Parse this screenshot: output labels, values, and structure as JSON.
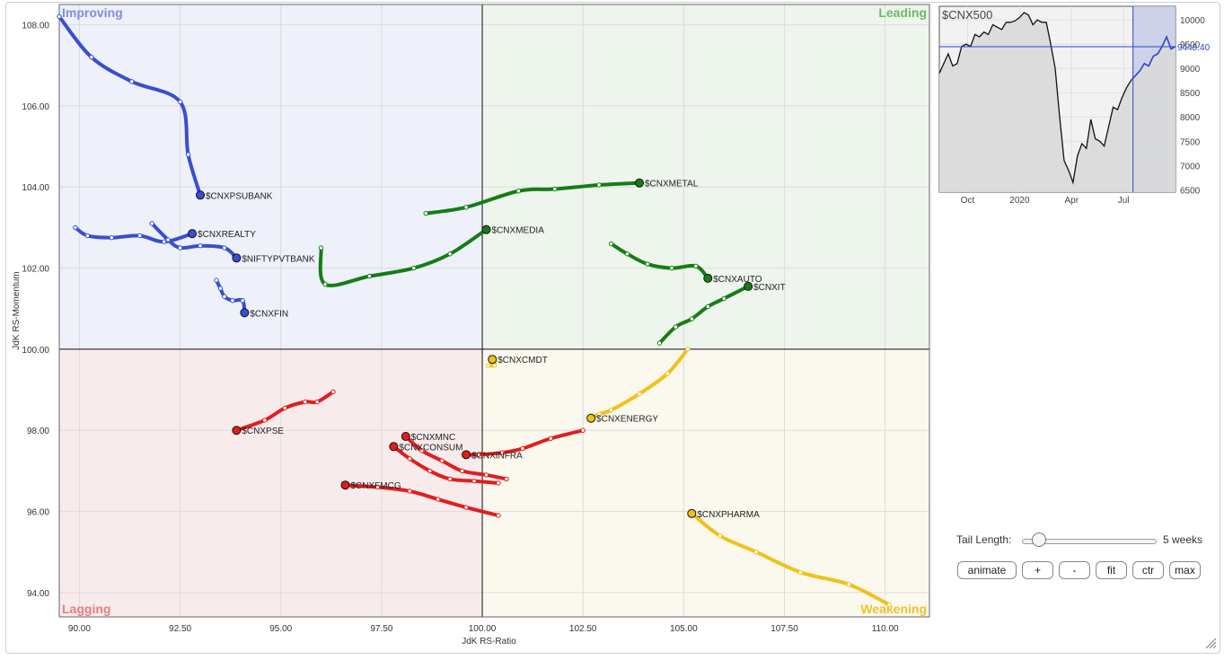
{
  "chart_data": [
    {
      "type": "scatter",
      "title": "",
      "xlabel": "JdK RS-Ratio",
      "ylabel": "JdK RS-Momentum",
      "xlim": [
        89.5,
        111.1
      ],
      "ylim": [
        93.4,
        108.5
      ],
      "x_ticks": [
        90,
        92.5,
        95,
        97.5,
        100,
        102.5,
        105,
        107.5,
        110
      ],
      "x_tick_labels": [
        "90.00",
        "92.50",
        "95.00",
        "97.50",
        "100.00",
        "102.50",
        "105.00",
        "107.50",
        "110.00"
      ],
      "y_ticks": [
        94,
        96,
        98,
        100,
        102,
        104,
        106,
        108
      ],
      "y_tick_labels": [
        "94.00",
        "96.00",
        "98.00",
        "100.00",
        "102.00",
        "104.00",
        "106.00",
        "108.00"
      ],
      "center": [
        100,
        100
      ],
      "grid": true,
      "quadrants": [
        {
          "name": "Improving",
          "position": "top-left",
          "fill": "#eef0fa",
          "label_color": "#7f8fd6"
        },
        {
          "name": "Leading",
          "position": "top-right",
          "fill": "#edf5ec",
          "label_color": "#6cb96a"
        },
        {
          "name": "Lagging",
          "position": "bottom-left",
          "fill": "#f8ebeb",
          "label_color": "#e68080"
        },
        {
          "name": "Weakening",
          "position": "bottom-right",
          "fill": "#fbf8ee",
          "label_color": "#efc32a"
        }
      ],
      "series": [
        {
          "name": "$CNXPSUBANK",
          "color": "#3b4ecf",
          "tail": [
            [
              89.5,
              108.2
            ],
            [
              90.3,
              107.2
            ],
            [
              91.3,
              106.6
            ],
            [
              92.5,
              106.1
            ],
            [
              92.7,
              104.8
            ],
            [
              93.0,
              103.8
            ]
          ]
        },
        {
          "name": "$CNXREALTY",
          "color": "#3b4ecf",
          "tail": [
            [
              89.9,
              103.0
            ],
            [
              90.2,
              102.8
            ],
            [
              90.8,
              102.75
            ],
            [
              91.5,
              102.8
            ],
            [
              92.1,
              102.65
            ],
            [
              92.8,
              102.85
            ]
          ]
        },
        {
          "name": "$NIFTYPVTBANK",
          "color": "#3b4ecf",
          "tail": [
            [
              91.8,
              103.1
            ],
            [
              92.2,
              102.7
            ],
            [
              92.5,
              102.5
            ],
            [
              93.0,
              102.55
            ],
            [
              93.6,
              102.5
            ],
            [
              93.9,
              102.25
            ]
          ]
        },
        {
          "name": "$CNXFIN",
          "color": "#3b4ecf",
          "tail": [
            [
              93.4,
              101.7
            ],
            [
              93.5,
              101.5
            ],
            [
              93.6,
              101.3
            ],
            [
              93.8,
              101.2
            ],
            [
              94.05,
              101.2
            ],
            [
              94.1,
              100.9
            ]
          ]
        },
        {
          "name": "$CNXMETAL",
          "color": "#157d15",
          "tail": [
            [
              98.6,
              103.35
            ],
            [
              99.6,
              103.5
            ],
            [
              100.9,
              103.9
            ],
            [
              101.8,
              103.95
            ],
            [
              102.9,
              104.05
            ],
            [
              103.9,
              104.1
            ]
          ]
        },
        {
          "name": "$CNXMEDIA",
          "color": "#157d15",
          "tail": [
            [
              96.0,
              102.5
            ],
            [
              96.1,
              101.6
            ],
            [
              97.2,
              101.8
            ],
            [
              98.3,
              102.0
            ],
            [
              99.2,
              102.35
            ],
            [
              100.1,
              102.95
            ]
          ]
        },
        {
          "name": "$CNXAUTO",
          "color": "#157d15",
          "tail": [
            [
              103.2,
              102.6
            ],
            [
              103.6,
              102.35
            ],
            [
              104.1,
              102.1
            ],
            [
              104.7,
              102.0
            ],
            [
              105.3,
              102.05
            ],
            [
              105.6,
              101.75
            ]
          ]
        },
        {
          "name": "$CNXIT",
          "color": "#157d15",
          "tail": [
            [
              104.4,
              100.15
            ],
            [
              104.8,
              100.55
            ],
            [
              105.2,
              100.75
            ],
            [
              105.6,
              101.05
            ],
            [
              106.0,
              101.25
            ],
            [
              106.6,
              101.55
            ]
          ]
        },
        {
          "name": "$CNXCMDT",
          "color": "#eec21a",
          "tail": [
            [
              100.15,
              99.6
            ],
            [
              100.3,
              99.6
            ],
            [
              100.3,
              99.7
            ],
            [
              100.25,
              99.75
            ],
            [
              100.2,
              99.75
            ],
            [
              100.25,
              99.75
            ]
          ]
        },
        {
          "name": "$CNXENERGY",
          "color": "#eec21a",
          "tail": [
            [
              105.1,
              100.0
            ],
            [
              104.6,
              99.4
            ],
            [
              103.9,
              98.9
            ],
            [
              103.2,
              98.5
            ],
            [
              102.9,
              98.4
            ],
            [
              102.7,
              98.3
            ]
          ]
        },
        {
          "name": "$CNXPHARMA",
          "color": "#eec21a",
          "tail": [
            [
              110.1,
              93.7
            ],
            [
              109.1,
              94.2
            ],
            [
              107.9,
              94.5
            ],
            [
              106.8,
              95.0
            ],
            [
              105.9,
              95.4
            ],
            [
              105.2,
              95.95
            ]
          ]
        },
        {
          "name": "$CNXPSE",
          "color": "#e21d1d",
          "tail": [
            [
              96.3,
              98.95
            ],
            [
              95.9,
              98.7
            ],
            [
              95.6,
              98.7
            ],
            [
              95.1,
              98.55
            ],
            [
              94.6,
              98.25
            ],
            [
              93.9,
              98.0
            ]
          ]
        },
        {
          "name": "$CNXMNC",
          "color": "#e21d1d",
          "tail": [
            [
              100.6,
              96.8
            ],
            [
              100.1,
              96.9
            ],
            [
              99.5,
              97.0
            ],
            [
              99.0,
              97.25
            ],
            [
              98.5,
              97.5
            ],
            [
              98.1,
              97.85
            ]
          ]
        },
        {
          "name": "$CNXCONSUM",
          "color": "#e21d1d",
          "tail": [
            [
              100.4,
              96.7
            ],
            [
              99.8,
              96.75
            ],
            [
              99.2,
              96.8
            ],
            [
              98.7,
              97.0
            ],
            [
              98.2,
              97.3
            ],
            [
              97.8,
              97.6
            ]
          ]
        },
        {
          "name": "$CNXINFRA",
          "color": "#e21d1d",
          "tail": [
            [
              102.5,
              98.0
            ],
            [
              101.7,
              97.8
            ],
            [
              101.0,
              97.55
            ],
            [
              100.5,
              97.45
            ],
            [
              99.9,
              97.4
            ],
            [
              99.6,
              97.4
            ]
          ]
        },
        {
          "name": "$CNXFMCG",
          "color": "#e21d1d",
          "tail": [
            [
              100.4,
              95.9
            ],
            [
              99.6,
              96.1
            ],
            [
              98.9,
              96.3
            ],
            [
              98.2,
              96.5
            ],
            [
              97.4,
              96.6
            ],
            [
              96.6,
              96.65
            ]
          ]
        }
      ]
    },
    {
      "type": "line",
      "title": "$CNX500",
      "x_tick_labels": [
        "Oct",
        "2020",
        "Apr",
        "Jul"
      ],
      "x_tick_positions": [
        0.12,
        0.34,
        0.56,
        0.78
      ],
      "y_ticks": [
        6500,
        7000,
        7500,
        8000,
        8500,
        9000,
        9500,
        10000
      ],
      "y_tick_labels": [
        "6500",
        "7000",
        "7500",
        "8000",
        "8500",
        "9000",
        "9500",
        "10000"
      ],
      "ylim": [
        6450,
        10280
      ],
      "last_value": 9448.4,
      "last_value_label": "9448.40",
      "highlight_start": 0.82,
      "values": [
        8900,
        9100,
        9300,
        9050,
        9100,
        9450,
        9500,
        9450,
        9700,
        9650,
        9750,
        9700,
        9900,
        9850,
        9800,
        9950,
        9950,
        9980,
        10050,
        10150,
        10100,
        9900,
        10000,
        9950,
        9950,
        9500,
        9000,
        8000,
        7100,
        6900,
        6650,
        7200,
        7450,
        7350,
        7950,
        7550,
        7500,
        7400,
        7800,
        8200,
        8150,
        8400,
        8600,
        8750,
        8850,
        8950,
        9100,
        9050,
        9250,
        9300,
        9450,
        9650,
        9400,
        9450
      ]
    }
  ],
  "controls": {
    "tail_label": "Tail Length:",
    "tail_value": "5 weeks",
    "tail_fraction": 0.12,
    "buttons": [
      "animate",
      "+",
      "-",
      "fit",
      "ctr",
      "max"
    ]
  }
}
